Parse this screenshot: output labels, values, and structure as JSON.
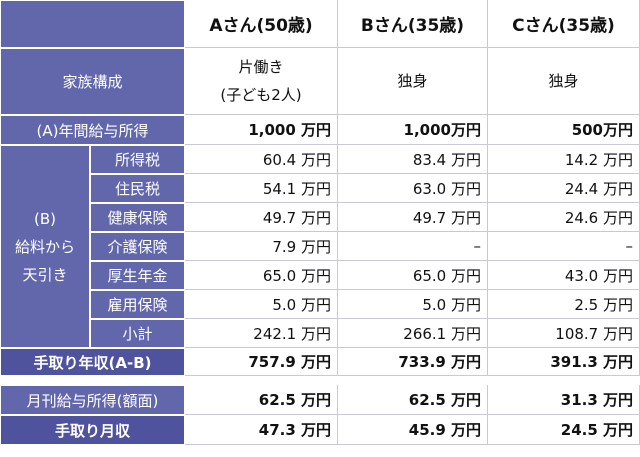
{
  "header": {
    "columns": [
      "Aさん(50歳)",
      "Bさん(35歳)",
      "Cさん(35歳)"
    ]
  },
  "family": {
    "label": "家族構成",
    "values": [
      [
        "片働き",
        "(子ども2人)"
      ],
      [
        "独身"
      ],
      [
        "独身"
      ]
    ]
  },
  "income": {
    "label": "(A)年間給与所得",
    "values": [
      "1,000 万円",
      "1,000万円",
      "500万円"
    ]
  },
  "deductions": {
    "group_label": [
      "(B)",
      "給料から",
      "天引き"
    ],
    "rows": [
      {
        "label": "所得税",
        "values": [
          "60.4 万円",
          "83.4 万円",
          "14.2 万円"
        ]
      },
      {
        "label": "住民税",
        "values": [
          "54.1 万円",
          "63.0 万円",
          "24.4 万円"
        ]
      },
      {
        "label": "健康保険",
        "values": [
          "49.7 万円",
          "49.7 万円",
          "24.6 万円"
        ]
      },
      {
        "label": "介護保険",
        "values": [
          "7.9 万円",
          "–",
          "–"
        ]
      },
      {
        "label": "厚生年金",
        "values": [
          "65.0 万円",
          "65.0 万円",
          "43.0 万円"
        ]
      },
      {
        "label": "雇用保険",
        "values": [
          "5.0 万円",
          "5.0 万円",
          "2.5 万円"
        ]
      },
      {
        "label": "小計",
        "values": [
          "242.1 万円",
          "266.1 万円",
          "108.7 万円"
        ]
      }
    ]
  },
  "net_annual": {
    "label": "手取り年収(A-B)",
    "values": [
      "757.9 万円",
      "733.9 万円",
      "391.3 万円"
    ]
  },
  "monthly_gross": {
    "label": "月刊給与所得(額面)",
    "values": [
      "62.5 万円",
      "62.5 万円",
      "31.3 万円"
    ]
  },
  "net_monthly": {
    "label": "手取り月収",
    "values": [
      "47.3 万円",
      "45.9 万円",
      "24.5 万円"
    ]
  }
}
